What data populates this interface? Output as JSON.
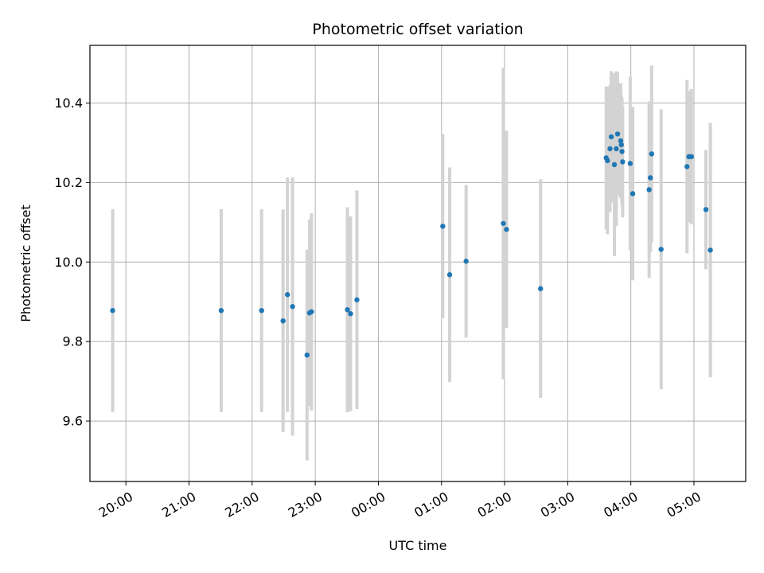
{
  "chart_data": {
    "type": "scatter",
    "title": "Photometric offset variation",
    "xlabel": "UTC time",
    "ylabel": "Photometric offset",
    "x_unit": "hours since 19:00 UTC",
    "xlim": [
      0.43,
      10.82
    ],
    "ylim": [
      9.448,
      10.545
    ],
    "grid": true,
    "legend": "none",
    "point_color": "#1f77b4",
    "errorbar_color": "#d3d3d3",
    "xticks": [
      {
        "value": 1,
        "label": "20:00"
      },
      {
        "value": 2,
        "label": "21:00"
      },
      {
        "value": 3,
        "label": "22:00"
      },
      {
        "value": 4,
        "label": "23:00"
      },
      {
        "value": 5,
        "label": "00:00"
      },
      {
        "value": 6,
        "label": "01:00"
      },
      {
        "value": 7,
        "label": "02:00"
      },
      {
        "value": 8,
        "label": "03:00"
      },
      {
        "value": 9,
        "label": "04:00"
      },
      {
        "value": 10,
        "label": "05:00"
      }
    ],
    "yticks": [
      {
        "value": 9.6,
        "label": "9.6"
      },
      {
        "value": 9.8,
        "label": "9.8"
      },
      {
        "value": 10.0,
        "label": "10.0"
      },
      {
        "value": 10.2,
        "label": "10.2"
      },
      {
        "value": 10.4,
        "label": "10.4"
      }
    ],
    "points": [
      {
        "x": 0.79,
        "y": 9.878,
        "err": 0.255
      },
      {
        "x": 2.51,
        "y": 9.878,
        "err": 0.255
      },
      {
        "x": 3.15,
        "y": 9.878,
        "err": 0.255
      },
      {
        "x": 3.49,
        "y": 9.852,
        "err": 0.28
      },
      {
        "x": 3.56,
        "y": 9.918,
        "err": 0.295
      },
      {
        "x": 3.64,
        "y": 9.888,
        "err": 0.325
      },
      {
        "x": 3.87,
        "y": 9.766,
        "err": 0.265
      },
      {
        "x": 3.91,
        "y": 9.872,
        "err": 0.235
      },
      {
        "x": 3.94,
        "y": 9.875,
        "err": 0.248
      },
      {
        "x": 4.51,
        "y": 9.88,
        "err": 0.258
      },
      {
        "x": 4.56,
        "y": 9.87,
        "err": 0.245
      },
      {
        "x": 4.66,
        "y": 9.905,
        "err": 0.275
      },
      {
        "x": 6.02,
        "y": 10.09,
        "err": 0.232
      },
      {
        "x": 6.13,
        "y": 9.968,
        "err": 0.27
      },
      {
        "x": 6.39,
        "y": 10.002,
        "err": 0.192
      },
      {
        "x": 6.98,
        "y": 10.097,
        "err": 0.392
      },
      {
        "x": 7.03,
        "y": 10.082,
        "err": 0.248
      },
      {
        "x": 7.57,
        "y": 9.933,
        "err": 0.275
      },
      {
        "x": 8.61,
        "y": 10.262,
        "err": 0.18
      },
      {
        "x": 8.63,
        "y": 10.255,
        "err": 0.185
      },
      {
        "x": 8.67,
        "y": 10.285,
        "err": 0.16
      },
      {
        "x": 8.69,
        "y": 10.315,
        "err": 0.165
      },
      {
        "x": 8.74,
        "y": 10.245,
        "err": 0.23
      },
      {
        "x": 8.77,
        "y": 10.285,
        "err": 0.195
      },
      {
        "x": 8.79,
        "y": 10.322,
        "err": 0.155
      },
      {
        "x": 8.84,
        "y": 10.305,
        "err": 0.145
      },
      {
        "x": 8.85,
        "y": 10.295,
        "err": 0.125
      },
      {
        "x": 8.86,
        "y": 10.278,
        "err": 0.135
      },
      {
        "x": 8.87,
        "y": 10.252,
        "err": 0.14
      },
      {
        "x": 8.99,
        "y": 10.248,
        "err": 0.218
      },
      {
        "x": 9.03,
        "y": 10.172,
        "err": 0.218
      },
      {
        "x": 9.29,
        "y": 10.182,
        "err": 0.222
      },
      {
        "x": 9.31,
        "y": 10.212,
        "err": 0.188
      },
      {
        "x": 9.33,
        "y": 10.272,
        "err": 0.222
      },
      {
        "x": 9.48,
        "y": 10.032,
        "err": 0.352
      },
      {
        "x": 9.89,
        "y": 10.24,
        "err": 0.218
      },
      {
        "x": 9.92,
        "y": 10.265,
        "err": 0.165
      },
      {
        "x": 9.96,
        "y": 10.265,
        "err": 0.17
      },
      {
        "x": 10.19,
        "y": 10.132,
        "err": 0.15
      },
      {
        "x": 10.26,
        "y": 10.03,
        "err": 0.32
      }
    ]
  }
}
